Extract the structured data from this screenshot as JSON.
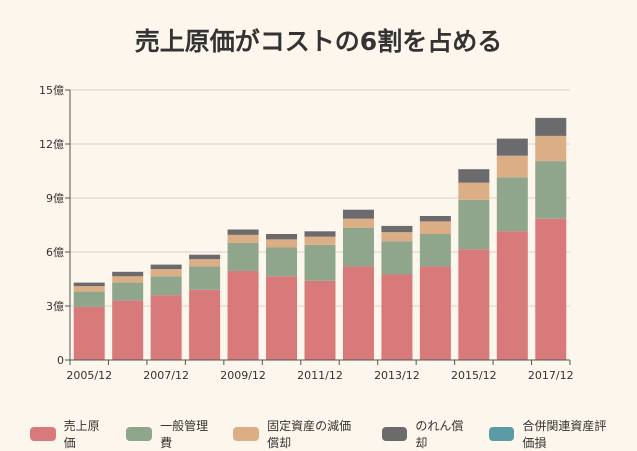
{
  "chart_data": {
    "type": "bar",
    "stacked": true,
    "title": "売上原価がコストの6割を占める",
    "xlabel": "",
    "ylabel": "",
    "ylim": [
      0,
      15
    ],
    "yticks": [
      "0",
      "3億",
      "6億",
      "9億",
      "12億",
      "15億"
    ],
    "categories": [
      "2005/12",
      "2006/12",
      "2007/12",
      "2008/12",
      "2009/12",
      "2010/12",
      "2011/12",
      "2012/12",
      "2013/12",
      "2014/12",
      "2015/12",
      "2016/12",
      "2017/12"
    ],
    "xtick_labels": [
      "2005/12",
      "",
      "2007/12",
      "",
      "2009/12",
      "",
      "2011/12",
      "",
      "2013/12",
      "",
      "2015/12",
      "",
      "2017/12"
    ],
    "grid": true,
    "legend_position": "bottom",
    "series": [
      {
        "name": "売上原価",
        "color": "#d87a79",
        "values": [
          2.95,
          3.3,
          3.6,
          3.9,
          4.95,
          4.65,
          4.4,
          5.2,
          4.75,
          5.2,
          6.15,
          7.15,
          7.85
        ]
      },
      {
        "name": "一般管理費",
        "color": "#8fa58c",
        "values": [
          0.85,
          1.0,
          1.05,
          1.3,
          1.55,
          1.6,
          2.0,
          2.15,
          1.85,
          1.8,
          2.75,
          3.0,
          3.2
        ]
      },
      {
        "name": "固定資産の減価償却",
        "color": "#dcae86",
        "values": [
          0.3,
          0.35,
          0.4,
          0.4,
          0.45,
          0.45,
          0.45,
          0.5,
          0.5,
          0.7,
          0.95,
          1.2,
          1.4
        ]
      },
      {
        "name": "のれん償却",
        "color": "#6b6b6d",
        "values": [
          0.2,
          0.25,
          0.25,
          0.25,
          0.3,
          0.3,
          0.3,
          0.5,
          0.35,
          0.3,
          0.75,
          0.95,
          1.0
        ]
      },
      {
        "name": "合併関連資産評価損",
        "color": "#5a9ba5",
        "values": [
          0,
          0,
          0,
          0,
          0,
          0,
          0,
          0,
          0,
          0,
          0,
          0,
          0
        ]
      }
    ]
  }
}
